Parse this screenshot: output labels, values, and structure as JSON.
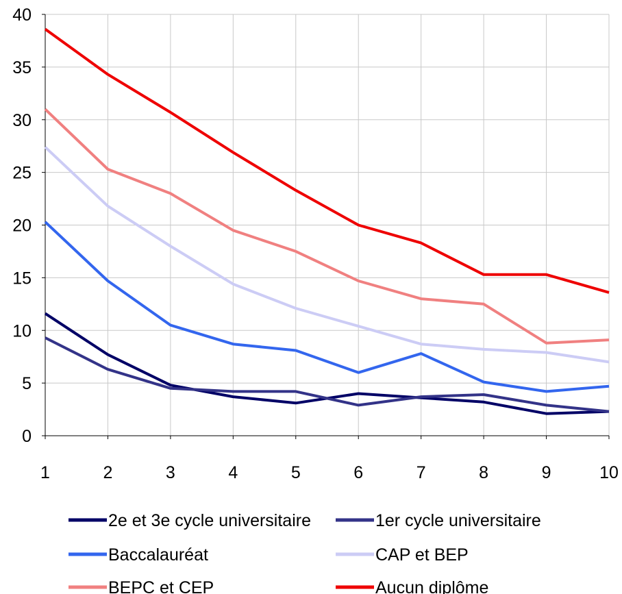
{
  "chart_data": {
    "type": "line",
    "x": [
      1,
      2,
      3,
      4,
      5,
      6,
      7,
      8,
      9,
      10
    ],
    "xlim": [
      1,
      10
    ],
    "ylim": [
      0,
      40
    ],
    "yticks": [
      0,
      5,
      10,
      15,
      20,
      25,
      30,
      35,
      40
    ],
    "xticks": [
      1,
      2,
      3,
      4,
      5,
      6,
      7,
      8,
      9,
      10
    ],
    "grid": true,
    "legend_position": "bottom",
    "series": [
      {
        "name": "2e et 3e cycle universitaire",
        "color": "#000066",
        "values": [
          11.6,
          7.7,
          4.8,
          3.7,
          3.1,
          4.0,
          3.6,
          3.2,
          2.1,
          2.3
        ]
      },
      {
        "name": "1er cycle universitaire",
        "color": "#333388",
        "values": [
          9.3,
          6.3,
          4.5,
          4.2,
          4.2,
          2.9,
          3.7,
          3.9,
          2.9,
          2.3
        ]
      },
      {
        "name": "Baccalauréat",
        "color": "#3366ee",
        "values": [
          20.3,
          14.7,
          10.5,
          8.7,
          8.1,
          6.0,
          7.8,
          5.1,
          4.2,
          4.7
        ]
      },
      {
        "name": "CAP et BEP",
        "color": "#ccccf5",
        "values": [
          27.4,
          21.8,
          18.0,
          14.4,
          12.1,
          10.4,
          8.7,
          8.2,
          7.9,
          7.0
        ]
      },
      {
        "name": "BEPC et CEP",
        "color": "#f08080",
        "values": [
          31.0,
          25.3,
          23.0,
          19.5,
          17.5,
          14.7,
          13.0,
          12.5,
          8.8,
          9.1
        ]
      },
      {
        "name": "Aucun diplôme",
        "color": "#ee0000",
        "values": [
          38.6,
          34.3,
          30.7,
          26.9,
          23.3,
          20.0,
          18.3,
          15.3,
          15.3,
          13.6
        ]
      }
    ]
  }
}
